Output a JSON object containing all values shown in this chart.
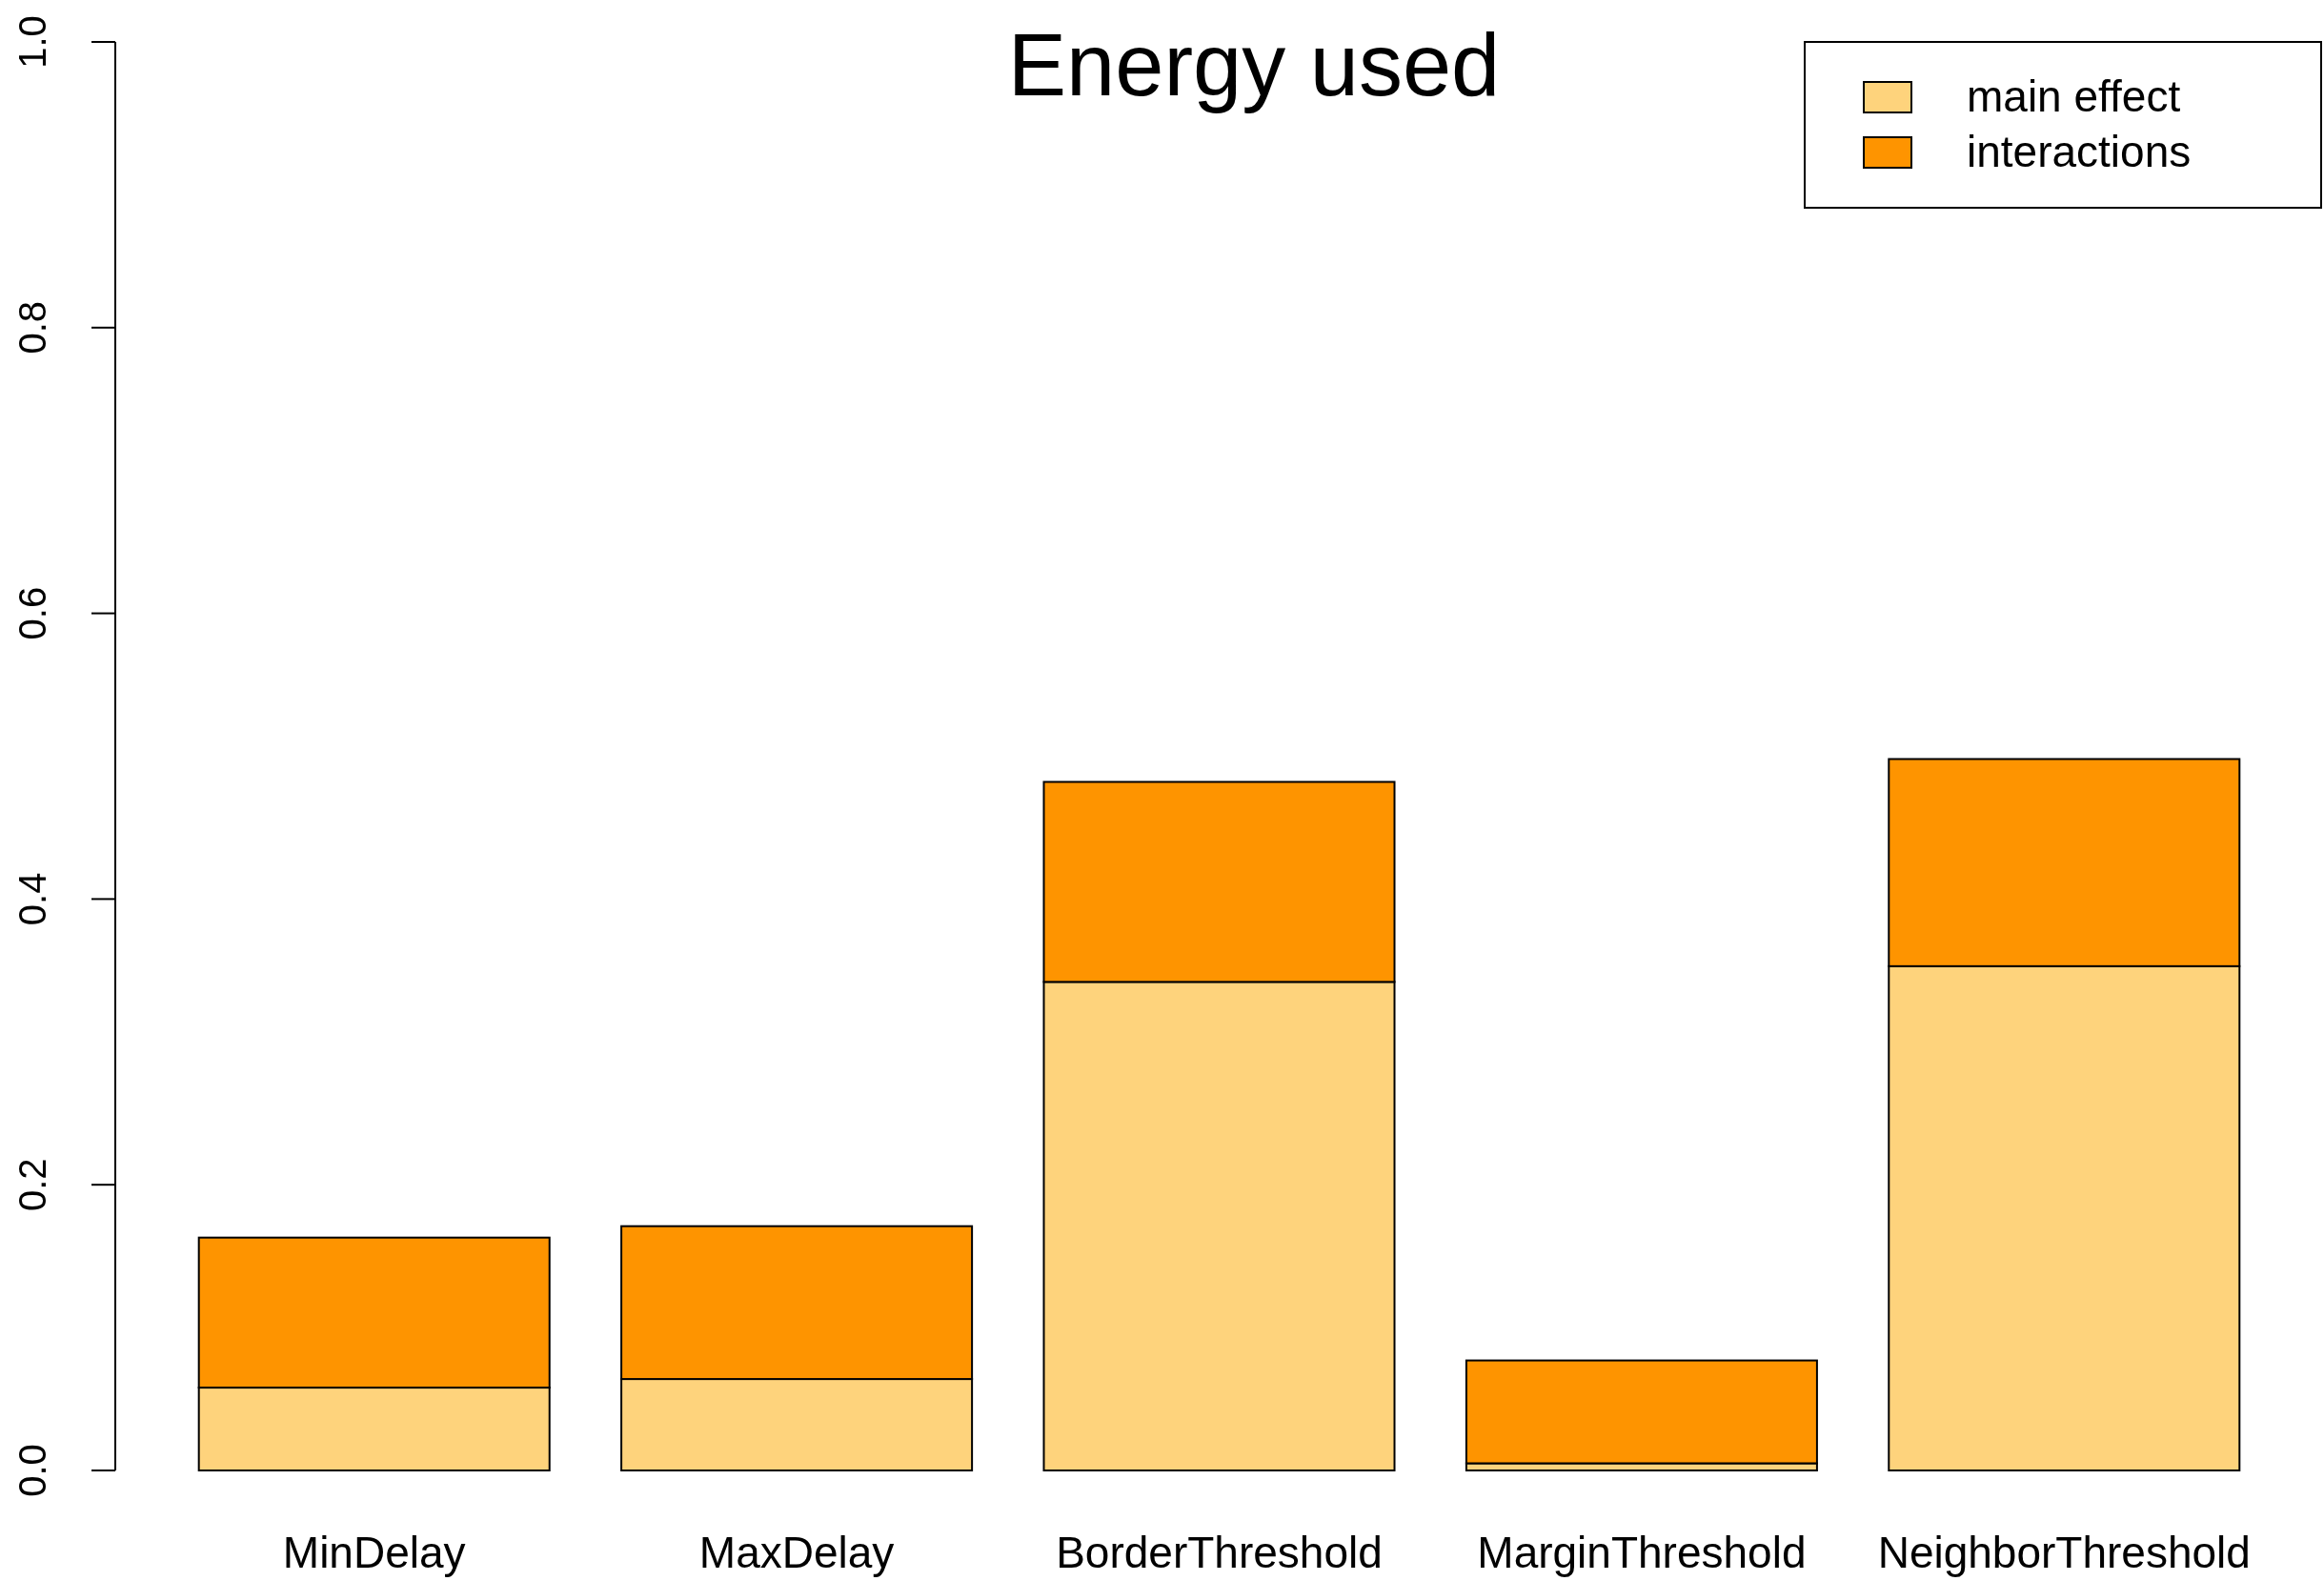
{
  "chart_data": {
    "type": "bar",
    "title": "Energy used",
    "categories": [
      "MinDelay",
      "MaxDelay",
      "BorderThreshold",
      "MarginThreshold",
      "NeighborThreshold"
    ],
    "series": [
      {
        "name": "main effect",
        "color": "#fed37c",
        "values": [
          0.058,
          0.064,
          0.342,
          0.005,
          0.353
        ]
      },
      {
        "name": "interactions",
        "color": "#fe9400",
        "values": [
          0.105,
          0.107,
          0.14,
          0.072,
          0.145
        ]
      }
    ],
    "stacked": true,
    "ylim": [
      0,
      1
    ],
    "yticks": [
      {
        "value": 0,
        "label": "0.0"
      },
      {
        "value": 0.2,
        "label": "0.2"
      },
      {
        "value": 0.4,
        "label": "0.4"
      },
      {
        "value": 0.6,
        "label": "0.6"
      },
      {
        "value": 0.8,
        "label": "0.8"
      },
      {
        "value": 1,
        "label": "1.0"
      }
    ],
    "grid": false,
    "legend": "top right"
  }
}
